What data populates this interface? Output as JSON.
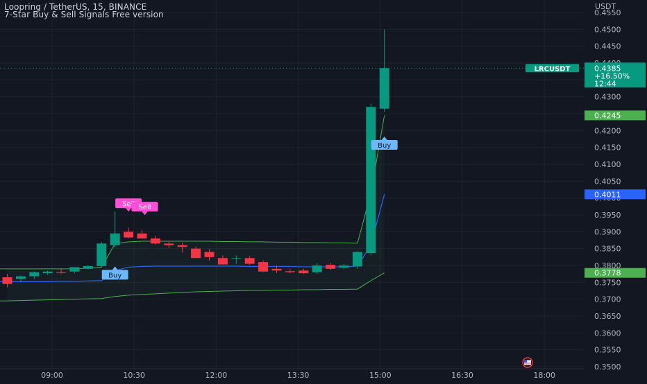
{
  "header": {
    "symbol_line": "Loopring / TetherUS, 15, BINANCE",
    "indicator_line": "7-Star Buy & Sell Signals Free version"
  },
  "price_axis": {
    "currency": "USDT",
    "ticks": [
      "0.4550",
      "0.4500",
      "0.4450",
      "0.4400",
      "0.4350",
      "0.4300",
      "0.4250",
      "0.4200",
      "0.4150",
      "0.4100",
      "0.4050",
      "0.4000",
      "0.3950",
      "0.3900",
      "0.3850",
      "0.3800",
      "0.3750",
      "0.3700",
      "0.3650",
      "0.3600",
      "0.3550",
      "0.3500"
    ]
  },
  "time_axis": {
    "ticks": [
      "09:00",
      "10:30",
      "12:00",
      "13:30",
      "15:00",
      "16:30",
      "18:00"
    ]
  },
  "last_price": {
    "symbol": "LRCUSDT",
    "price": "0.4385",
    "change": "+16.50%",
    "countdown": "12:44",
    "color": "#089981"
  },
  "level_badges": [
    {
      "value": "0.4245",
      "price": 0.4245,
      "color": "#4caf50"
    },
    {
      "value": "0.4011",
      "price": 0.4011,
      "color": "#2962ff"
    },
    {
      "value": "0.3778",
      "price": 0.3778,
      "color": "#4caf50"
    }
  ],
  "signals": [
    {
      "label": "Buy",
      "type": "buy",
      "bar": 8,
      "price": 0.3787
    },
    {
      "label": "Sell",
      "type": "sell",
      "bar": 9,
      "price": 0.397
    },
    {
      "label": "Sell",
      "type": "sell",
      "bar": 10,
      "price": 0.396
    },
    {
      "label": "Buy",
      "type": "buy",
      "bar": 28,
      "price": 0.4172
    }
  ],
  "colors": {
    "up": "#089981",
    "down": "#f23645",
    "buy_label": "#6bb8ff",
    "sell_label": "#ff4fd8",
    "band": "#4caf50",
    "midline": "#2962ff",
    "background": "#131722"
  },
  "chart_data": {
    "type": "candlestick",
    "interval": "15",
    "ylim": [
      0.35,
      0.455
    ],
    "x": [
      "08:30",
      "08:45",
      "09:00",
      "09:15",
      "09:30",
      "09:45",
      "10:00",
      "10:15",
      "10:30",
      "10:45",
      "11:00",
      "11:15",
      "11:30",
      "11:45",
      "12:00",
      "12:15",
      "12:30",
      "12:45",
      "13:00",
      "13:15",
      "13:30",
      "13:45",
      "14:00",
      "14:15",
      "14:30",
      "14:45",
      "15:00",
      "15:15",
      "15:30"
    ],
    "open": [
      0.3765,
      0.376,
      0.3768,
      0.3777,
      0.378,
      0.3782,
      0.379,
      0.3798,
      0.386,
      0.39,
      0.3895,
      0.388,
      0.3865,
      0.386,
      0.385,
      0.384,
      0.3822,
      0.382,
      0.3822,
      0.381,
      0.379,
      0.3783,
      0.3785,
      0.378,
      0.3802,
      0.3793,
      0.3797,
      0.3837,
      0.4265
    ],
    "high": [
      0.3775,
      0.377,
      0.3782,
      0.3785,
      0.3792,
      0.3795,
      0.3802,
      0.387,
      0.396,
      0.3912,
      0.3905,
      0.3888,
      0.3872,
      0.3868,
      0.3856,
      0.3848,
      0.383,
      0.383,
      0.3828,
      0.3815,
      0.38,
      0.379,
      0.379,
      0.3808,
      0.3808,
      0.3805,
      0.3842,
      0.428,
      0.45
    ],
    "low": [
      0.3735,
      0.3752,
      0.376,
      0.3772,
      0.3775,
      0.3778,
      0.3788,
      0.3795,
      0.3852,
      0.388,
      0.3878,
      0.3862,
      0.3852,
      0.3838,
      0.3828,
      0.3815,
      0.3805,
      0.3805,
      0.3802,
      0.378,
      0.3778,
      0.3777,
      0.3775,
      0.3775,
      0.3785,
      0.379,
      0.379,
      0.383,
      0.4255
    ],
    "close": [
      0.3745,
      0.3768,
      0.378,
      0.3782,
      0.3778,
      0.3795,
      0.3798,
      0.3865,
      0.3895,
      0.3883,
      0.388,
      0.3865,
      0.386,
      0.3855,
      0.3822,
      0.3825,
      0.3803,
      0.3822,
      0.3805,
      0.3782,
      0.3785,
      0.378,
      0.3777,
      0.38,
      0.379,
      0.38,
      0.384,
      0.427,
      0.4385
    ],
    "bands": {
      "upper": [
        0.379,
        0.379,
        0.379,
        0.379,
        0.379,
        0.379,
        0.3792,
        0.3795,
        0.3865,
        0.387,
        0.3872,
        0.3872,
        0.3872,
        0.3872,
        0.3872,
        0.3872,
        0.3871,
        0.3871,
        0.387,
        0.387,
        0.3869,
        0.3869,
        0.3868,
        0.3868,
        0.3867,
        0.3867,
        0.3866,
        0.4015,
        0.4245
      ],
      "middle": [
        0.3752,
        0.3752,
        0.3752,
        0.3752,
        0.3753,
        0.3753,
        0.3754,
        0.3755,
        0.3785,
        0.3795,
        0.3797,
        0.3798,
        0.3798,
        0.3798,
        0.3798,
        0.3798,
        0.3798,
        0.3798,
        0.3797,
        0.3797,
        0.3797,
        0.3797,
        0.3796,
        0.3796,
        0.3796,
        0.3796,
        0.3798,
        0.386,
        0.4011
      ],
      "lower": [
        0.3695,
        0.3696,
        0.3697,
        0.3698,
        0.3699,
        0.37,
        0.3701,
        0.3702,
        0.3708,
        0.3712,
        0.3714,
        0.3716,
        0.3718,
        0.372,
        0.3722,
        0.3723,
        0.3724,
        0.3725,
        0.3726,
        0.3726,
        0.3727,
        0.3727,
        0.3728,
        0.3728,
        0.3729,
        0.3729,
        0.373,
        0.3755,
        0.3778
      ]
    }
  }
}
